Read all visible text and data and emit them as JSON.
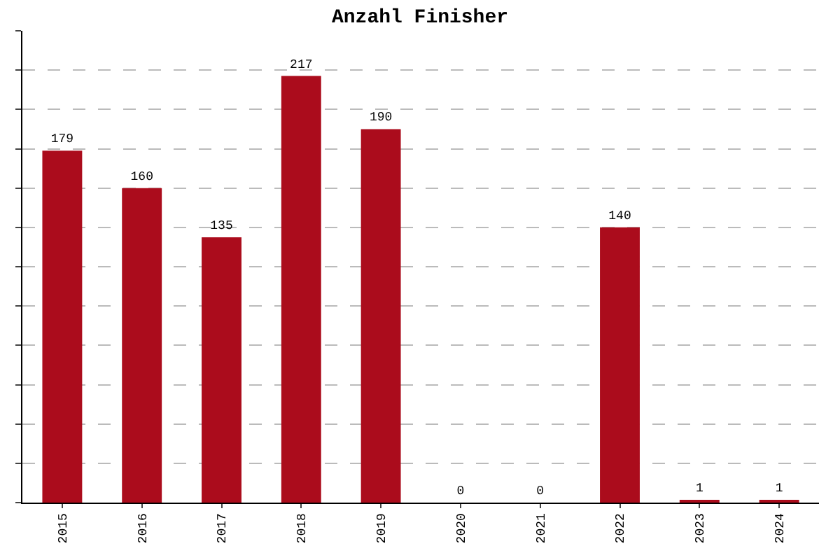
{
  "chart_data": {
    "type": "bar",
    "title": "Anzahl Finisher",
    "categories": [
      "2015",
      "2016",
      "2017",
      "2018",
      "2019",
      "2020",
      "2021",
      "2022",
      "2023",
      "2024"
    ],
    "values": [
      179,
      160,
      135,
      217,
      190,
      0,
      0,
      140,
      1,
      1
    ],
    "color": "#ab0c1c",
    "data_labels": true,
    "grid": "y",
    "tick_labels": "x",
    "ylim": [
      0,
      240
    ],
    "yticks": [
      {
        "value": 0,
        "label": null
      },
      {
        "value": 20,
        "label": null
      },
      {
        "value": 40,
        "label": null
      },
      {
        "value": 60,
        "label": null
      },
      {
        "value": 80,
        "label": null
      },
      {
        "value": 100,
        "label": null
      },
      {
        "value": 120,
        "label": null
      },
      {
        "value": 140,
        "label": null
      },
      {
        "value": 160,
        "label": null
      },
      {
        "value": 180,
        "label": null
      },
      {
        "value": 200,
        "label": null
      },
      {
        "value": 220,
        "label": null
      },
      {
        "value": 240,
        "label": null
      }
    ]
  }
}
